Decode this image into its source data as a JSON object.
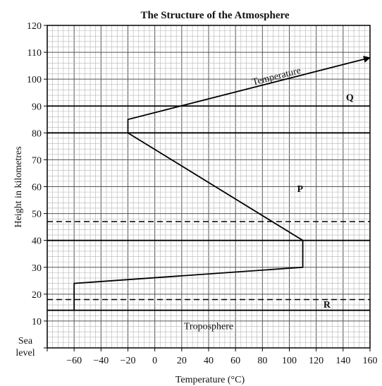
{
  "chart_data": {
    "type": "line",
    "title": "The Structure of the Atmosphere",
    "xlabel": "Temperature (°C)",
    "ylabel": "Height in kilometres",
    "xlim": [
      -80,
      160
    ],
    "ylim": [
      0,
      120
    ],
    "x_ticks": [
      -60,
      -40,
      -20,
      0,
      20,
      40,
      60,
      80,
      100,
      120,
      140,
      160
    ],
    "y_ticks": [
      10,
      20,
      30,
      40,
      50,
      60,
      70,
      80,
      90,
      100,
      110,
      120
    ],
    "y_zero_label": [
      "Sea",
      "level"
    ],
    "grid": true,
    "series": [
      {
        "name": "Temperature",
        "points": [
          {
            "x": -60,
            "y": 14
          },
          {
            "x": -60,
            "y": 24
          },
          {
            "x": 110,
            "y": 30
          },
          {
            "x": 110,
            "y": 40
          },
          {
            "x": -20,
            "y": 80
          },
          {
            "x": -20,
            "y": 85
          },
          {
            "x": 160,
            "y": 108
          }
        ]
      }
    ],
    "solid_boundaries_km": [
      14,
      40,
      80,
      90
    ],
    "dashed_boundaries_km": [
      18,
      47
    ],
    "annotations": [
      {
        "text": "Q",
        "x": 145,
        "y": 92
      },
      {
        "text": "P",
        "x": 108,
        "y": 58
      },
      {
        "text": "R",
        "x": 128,
        "y": 15
      },
      {
        "text": "Troposphere",
        "x": 40,
        "y": 7
      },
      {
        "text": "Temperature",
        "x": 91,
        "y": 100,
        "along_line": true
      }
    ]
  }
}
